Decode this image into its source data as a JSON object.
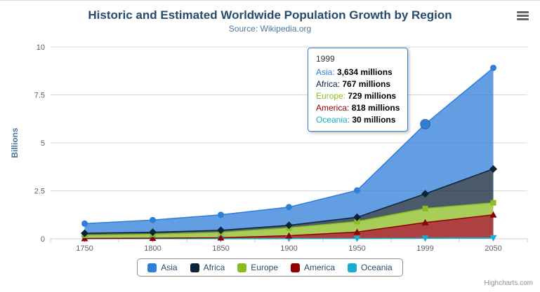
{
  "chart_data": {
    "type": "area",
    "stacked": true,
    "title": "Historic and Estimated Worldwide Population Growth by Region",
    "subtitle": "Source: Wikipedia.org",
    "ylabel": "Billions",
    "values_unit": "millions",
    "categories": [
      1750,
      1800,
      1850,
      1900,
      1950,
      1999,
      2050
    ],
    "yticks": [
      0,
      2.5,
      5,
      7.5,
      10
    ],
    "ylim": [
      0,
      10
    ],
    "grid": true,
    "legend_position": "bottom",
    "series": [
      {
        "name": "Asia",
        "color": "#2f7ed8",
        "marker": "circle",
        "values": [
          502,
          635,
          809,
          947,
          1402,
          3634,
          5268
        ]
      },
      {
        "name": "Africa",
        "color": "#0d233a",
        "marker": "diamond",
        "values": [
          106,
          107,
          111,
          133,
          221,
          767,
          1766
        ]
      },
      {
        "name": "Europe",
        "color": "#8bbc21",
        "marker": "square",
        "values": [
          163,
          203,
          276,
          408,
          547,
          729,
          628
        ]
      },
      {
        "name": "America",
        "color": "#910000",
        "marker": "triangle",
        "values": [
          18,
          31,
          54,
          156,
          339,
          818,
          1201
        ]
      },
      {
        "name": "Oceania",
        "color": "#1aadce",
        "marker": "triangle-down",
        "values": [
          2,
          2,
          2,
          6,
          13,
          30,
          46
        ]
      }
    ],
    "stack_order_bottom_to_top": [
      "Oceania",
      "America",
      "Europe",
      "Africa",
      "Asia"
    ],
    "hover": {
      "category": 1999,
      "series": "Asia"
    }
  },
  "tooltip": {
    "header": "1999",
    "border_color": "#2f7ed8",
    "rows": [
      {
        "name": "Asia",
        "color": "#2f7ed8",
        "value": "3,634 millions"
      },
      {
        "name": "Africa",
        "color": "#0d233a",
        "value": "767 millions"
      },
      {
        "name": "Europe",
        "color": "#8bbc21",
        "value": "729 millions"
      },
      {
        "name": "America",
        "color": "#910000",
        "value": "818 millions"
      },
      {
        "name": "Oceania",
        "color": "#1aadce",
        "value": "30 millions"
      }
    ]
  },
  "credits": "Highcharts.com",
  "colors": {
    "title": "#274b6d",
    "subtitle": "#4d759e",
    "axis_labels": "#606060",
    "legend_labels": "#274b6d",
    "axis_line": "#c0d0e0",
    "gridline": "#d8d8d8"
  }
}
